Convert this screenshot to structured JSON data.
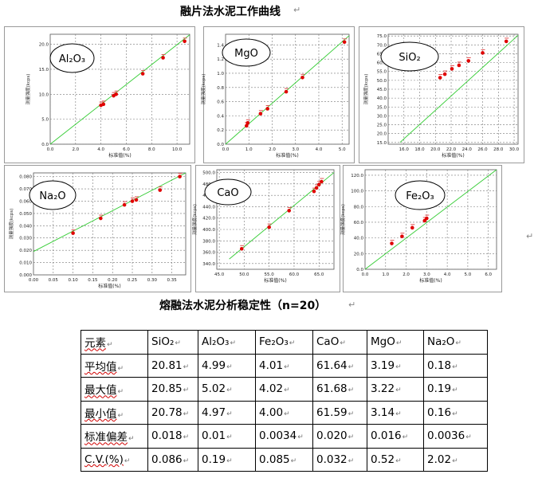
{
  "page": {
    "title": "融片法水泥工作曲线",
    "table_title": "熔融法水泥分析稳定性（n=20）"
  },
  "chart_data": [
    {
      "type": "scatter",
      "title": "Al₂O₃",
      "xlabel": "标准值(%)",
      "ylabel": "测量强度(kcps)",
      "xlim": [
        0,
        11
      ],
      "ylim": [
        0,
        22
      ],
      "xticks": [
        "0.0",
        "2.0",
        "4.0",
        "6.0",
        "8.0",
        "10.0"
      ],
      "yticks": [
        "0.0",
        "5.0",
        "10.0",
        "15.0",
        "20.0"
      ],
      "line": [
        [
          0,
          0
        ],
        [
          11,
          21.9
        ]
      ],
      "points": [
        [
          4.0,
          7.8
        ],
        [
          4.2,
          8.0
        ],
        [
          5.0,
          9.7
        ],
        [
          5.2,
          10.0
        ],
        [
          7.3,
          14.1
        ],
        [
          8.9,
          17.3
        ],
        [
          10.6,
          20.6
        ]
      ]
    },
    {
      "type": "scatter",
      "title": "MgO",
      "xlabel": "标准值(%)",
      "ylabel": "测量强度(kcps)",
      "xlim": [
        0,
        5.3
      ],
      "ylim": [
        0,
        1.55
      ],
      "xticks": [
        "0.0",
        "1.0",
        "2.0",
        "3.0",
        "4.0",
        "5.0"
      ],
      "yticks": [
        "0.0",
        "0.2",
        "0.4",
        "0.6",
        "0.8",
        "1.0",
        "1.2",
        "1.4"
      ],
      "line": [
        [
          0,
          0
        ],
        [
          5.3,
          1.53
        ]
      ],
      "points": [
        [
          0.9,
          0.26
        ],
        [
          0.95,
          0.3
        ],
        [
          1.5,
          0.43
        ],
        [
          1.8,
          0.5
        ],
        [
          2.6,
          0.74
        ],
        [
          3.3,
          0.94
        ],
        [
          5.1,
          1.44
        ]
      ]
    },
    {
      "type": "scatter",
      "title": "SiO₂",
      "xlabel": "标准值(%)",
      "ylabel": "测量强度(kcps)",
      "xlim": [
        14,
        30.5
      ],
      "ylim": [
        14,
        76
      ],
      "xticks": [
        "16.0",
        "18.0",
        "20.0",
        "22.0",
        "24.0",
        "26.0",
        "28.0",
        "30.0"
      ],
      "yticks": [
        "15.0",
        "20.0",
        "25.0",
        "30.0",
        "35.0",
        "40.0",
        "45.0",
        "50.0",
        "55.0",
        "60.0",
        "65.0",
        "70.0",
        "75.0"
      ],
      "line": [
        [
          15.5,
          15
        ],
        [
          30.5,
          75.4
        ]
      ],
      "points": [
        [
          20.6,
          51.5
        ],
        [
          21.2,
          53.5
        ],
        [
          22.1,
          56.5
        ],
        [
          23.0,
          58.5
        ],
        [
          24.2,
          61.0
        ],
        [
          26.0,
          65.5
        ],
        [
          29.0,
          72.0
        ]
      ]
    },
    {
      "type": "scatter",
      "title": "Na₂O",
      "xlabel": "标准值(%)",
      "ylabel": "测量强度(kcps)",
      "xlim": [
        0,
        0.385
      ],
      "ylim": [
        0,
        0.083
      ],
      "xticks": [
        "0.00",
        "0.05",
        "0.10",
        "0.15",
        "0.20",
        "0.25",
        "0.30",
        "0.35"
      ],
      "yticks": [
        "0.000",
        "0.010",
        "0.020",
        "0.030",
        "0.040",
        "0.050",
        "0.060",
        "0.070",
        "0.080"
      ],
      "line": [
        [
          0,
          0.019
        ],
        [
          0.385,
          0.083
        ]
      ],
      "points": [
        [
          0.1,
          0.034
        ],
        [
          0.17,
          0.046
        ],
        [
          0.23,
          0.057
        ],
        [
          0.25,
          0.06
        ],
        [
          0.26,
          0.061
        ],
        [
          0.32,
          0.069
        ],
        [
          0.37,
          0.08
        ]
      ]
    },
    {
      "type": "scatter",
      "title": "CaO",
      "xlabel": "标准值(%)",
      "ylabel": "测量强度(kcps)",
      "xlim": [
        44.5,
        68
      ],
      "ylim": [
        330,
        505
      ],
      "xticks": [
        "45.0",
        "50.0",
        "55.0",
        "60.0",
        "65.0"
      ],
      "yticks": [
        "340.0",
        "360.0",
        "380.0",
        "400.0",
        "420.0",
        "440.0",
        "460.0",
        "480.0",
        "500.0"
      ],
      "line": [
        [
          47,
          348
        ],
        [
          68,
          500
        ]
      ],
      "points": [
        [
          49.5,
          366
        ],
        [
          55,
          404
        ],
        [
          59,
          433
        ],
        [
          64,
          467
        ],
        [
          64.5,
          473
        ],
        [
          65,
          479
        ],
        [
          65.5,
          484
        ]
      ]
    },
    {
      "type": "scatter",
      "title": "Fe₂O₃",
      "xlabel": "标准值(%)",
      "ylabel": "测量强度(kcps)",
      "xlim": [
        0,
        6.4
      ],
      "ylim": [
        0,
        127
      ],
      "xticks": [
        "0.0",
        "1.0",
        "2.0",
        "3.0",
        "4.0",
        "5.0",
        "6.0"
      ],
      "yticks": [
        "0.0",
        "20.0",
        "40.0",
        "60.0",
        "80.0",
        "100.0",
        "120.0"
      ],
      "line": [
        [
          0,
          0
        ],
        [
          6.4,
          127
        ]
      ],
      "points": [
        [
          1.3,
          33
        ],
        [
          1.8,
          42
        ],
        [
          2.3,
          53
        ],
        [
          2.9,
          62
        ],
        [
          3.0,
          65
        ]
      ]
    }
  ],
  "table": {
    "header": [
      "元素",
      "SiO₂",
      "Al₂O₃",
      "Fe₂O₃",
      "CaO",
      "MgO",
      "Na₂O"
    ],
    "rows": [
      [
        "平均值",
        "20.81",
        "4.99",
        "4.01",
        "61.64",
        "3.19",
        "0.18"
      ],
      [
        "最大值",
        "20.85",
        "5.02",
        "4.02",
        "61.68",
        "3.22",
        "0.19"
      ],
      [
        "最小值",
        "20.78",
        "4.97",
        "4.00",
        "61.59",
        "3.14",
        "0.16"
      ],
      [
        "标准偏差",
        "0.018",
        "0.01",
        "0.0034",
        "0.020",
        "0.016",
        "0.0036"
      ],
      [
        "C.V.(%)",
        "0.086",
        "0.19",
        "0.085",
        "0.032",
        "0.52",
        "2.02"
      ]
    ]
  }
}
